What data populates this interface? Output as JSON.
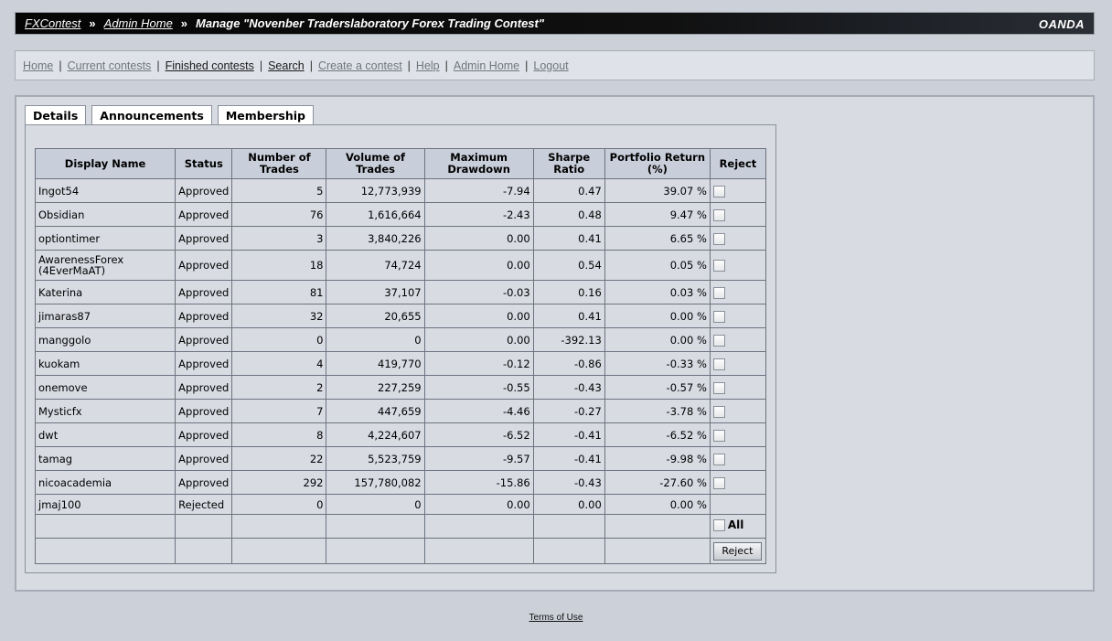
{
  "breadcrumb": {
    "root": "FXContest",
    "admin": "Admin Home",
    "current": "Manage \"Novenber Traderslaboratory Forex Trading Contest\"",
    "separator": "»"
  },
  "brand": "OANDA",
  "nav": [
    {
      "label": "Home",
      "dark": false
    },
    {
      "label": "Current contests",
      "dark": false
    },
    {
      "label": "Finished contests",
      "dark": true
    },
    {
      "label": "Search",
      "dark": true
    },
    {
      "label": "Create a contest",
      "dark": false
    },
    {
      "label": "Help",
      "dark": false
    },
    {
      "label": "Admin Home",
      "dark": false
    },
    {
      "label": "Logout",
      "dark": false
    }
  ],
  "tabs": [
    "Details",
    "Announcements",
    "Membership"
  ],
  "active_tab": "Membership",
  "table": {
    "headers": [
      "Display Name",
      "Status",
      "Number of Trades",
      "Volume of Trades",
      "Maximum Drawdown",
      "Sharpe Ratio",
      "Portfolio Return (%)",
      "Reject"
    ],
    "rows": [
      {
        "name": "Ingot54",
        "status": "Approved",
        "trades": "5",
        "volume": "12,773,939",
        "drawdown": "-7.94",
        "sharpe": "0.47",
        "return": "39.07 %",
        "checkbox": true
      },
      {
        "name": "Obsidian",
        "status": "Approved",
        "trades": "76",
        "volume": "1,616,664",
        "drawdown": "-2.43",
        "sharpe": "0.48",
        "return": "9.47 %",
        "checkbox": true
      },
      {
        "name": "optiontimer",
        "status": "Approved",
        "trades": "3",
        "volume": "3,840,226",
        "drawdown": "0.00",
        "sharpe": "0.41",
        "return": "6.65 %",
        "checkbox": true
      },
      {
        "name": "AwarenessForex (4EverMaAT)",
        "status": "Approved",
        "trades": "18",
        "volume": "74,724",
        "drawdown": "0.00",
        "sharpe": "0.54",
        "return": "0.05 %",
        "checkbox": true
      },
      {
        "name": "Katerina",
        "status": "Approved",
        "trades": "81",
        "volume": "37,107",
        "drawdown": "-0.03",
        "sharpe": "0.16",
        "return": "0.03 %",
        "checkbox": true
      },
      {
        "name": "jimaras87",
        "status": "Approved",
        "trades": "32",
        "volume": "20,655",
        "drawdown": "0.00",
        "sharpe": "0.41",
        "return": "0.00 %",
        "checkbox": true
      },
      {
        "name": "manggolo",
        "status": "Approved",
        "trades": "0",
        "volume": "0",
        "drawdown": "0.00",
        "sharpe": "-392.13",
        "return": "0.00 %",
        "checkbox": true
      },
      {
        "name": "kuokam",
        "status": "Approved",
        "trades": "4",
        "volume": "419,770",
        "drawdown": "-0.12",
        "sharpe": "-0.86",
        "return": "-0.33 %",
        "checkbox": true
      },
      {
        "name": "onemove",
        "status": "Approved",
        "trades": "2",
        "volume": "227,259",
        "drawdown": "-0.55",
        "sharpe": "-0.43",
        "return": "-0.57 %",
        "checkbox": true
      },
      {
        "name": "Mysticfx",
        "status": "Approved",
        "trades": "7",
        "volume": "447,659",
        "drawdown": "-4.46",
        "sharpe": "-0.27",
        "return": "-3.78 %",
        "checkbox": true
      },
      {
        "name": "dwt",
        "status": "Approved",
        "trades": "8",
        "volume": "4,224,607",
        "drawdown": "-6.52",
        "sharpe": "-0.41",
        "return": "-6.52 %",
        "checkbox": true
      },
      {
        "name": "tamag",
        "status": "Approved",
        "trades": "22",
        "volume": "5,523,759",
        "drawdown": "-9.57",
        "sharpe": "-0.41",
        "return": "-9.98 %",
        "checkbox": true
      },
      {
        "name": "nicoacademia",
        "status": "Approved",
        "trades": "292",
        "volume": "157,780,082",
        "drawdown": "-15.86",
        "sharpe": "-0.43",
        "return": "-27.60 %",
        "checkbox": true
      },
      {
        "name": "jmaj100",
        "status": "Rejected",
        "trades": "0",
        "volume": "0",
        "drawdown": "0.00",
        "sharpe": "0.00",
        "return": "0.00 %",
        "checkbox": false
      }
    ],
    "select_all_label": "All",
    "reject_button": "Reject"
  },
  "footer": {
    "terms": "Terms of Use"
  }
}
